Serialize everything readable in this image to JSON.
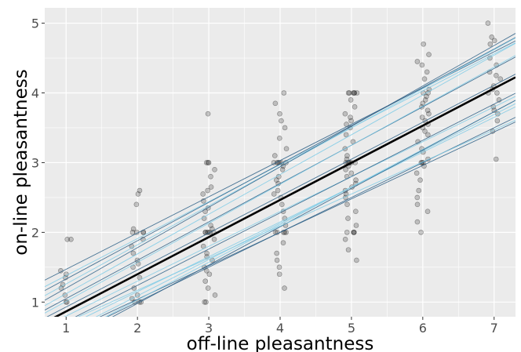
{
  "chart_data": {
    "type": "scatter",
    "xlabel": "off-line pleasantness",
    "ylabel": "on-line pleasantness",
    "xlim": [
      0.7,
      7.3
    ],
    "ylim": [
      0.79,
      5.22
    ],
    "x_ticks": [
      1,
      2,
      3,
      4,
      5,
      6,
      7
    ],
    "y_ticks": [
      1,
      2,
      3,
      4,
      5
    ],
    "grid": true,
    "legend": "none",
    "colors": {
      "panel": "#ebebeb",
      "grid_major": "#ffffff",
      "points": "#1a1a1a",
      "fixed_effect_line": "#000000",
      "random_lines_dark": "#2c5f86",
      "random_lines_light": "#7ecbe6"
    },
    "fixed_effect": {
      "intercept": 0.333,
      "slope": 0.533
    },
    "random_effects": [
      {
        "intercept": 0.95,
        "slope": 0.52
      },
      {
        "intercept": 0.85,
        "slope": 0.53
      },
      {
        "intercept": 0.78,
        "slope": 0.55
      },
      {
        "intercept": 0.7,
        "slope": 0.56
      },
      {
        "intercept": 0.62,
        "slope": 0.58
      },
      {
        "intercept": 0.55,
        "slope": 0.57
      },
      {
        "intercept": 0.5,
        "slope": 0.55
      },
      {
        "intercept": 0.45,
        "slope": 0.56
      },
      {
        "intercept": 0.4,
        "slope": 0.53
      },
      {
        "intercept": 0.3,
        "slope": 0.5
      },
      {
        "intercept": 0.2,
        "slope": 0.52
      },
      {
        "intercept": 0.15,
        "slope": 0.5
      },
      {
        "intercept": 0.08,
        "slope": 0.48
      },
      {
        "intercept": 0.05,
        "slope": 0.52
      },
      {
        "intercept": 0.0,
        "slope": 0.5
      },
      {
        "intercept": -0.05,
        "slope": 0.54
      },
      {
        "intercept": -0.12,
        "slope": 0.55
      },
      {
        "intercept": 0.25,
        "slope": 0.46
      }
    ],
    "points": [
      [
        1,
        1.0
      ],
      [
        1,
        1.0
      ],
      [
        1,
        1.2
      ],
      [
        1,
        1.25
      ],
      [
        1,
        1.35
      ],
      [
        1,
        1.4
      ],
      [
        1,
        1.45
      ],
      [
        1,
        1.9
      ],
      [
        1,
        1.9
      ],
      [
        1,
        1.1
      ],
      [
        2,
        1.0
      ],
      [
        2,
        1.0
      ],
      [
        2,
        1.0
      ],
      [
        2,
        1.05
      ],
      [
        2,
        1.1
      ],
      [
        2,
        1.2
      ],
      [
        2,
        1.35
      ],
      [
        2,
        1.5
      ],
      [
        2,
        1.55
      ],
      [
        2,
        1.6
      ],
      [
        2,
        1.7
      ],
      [
        2,
        1.8
      ],
      [
        2,
        1.9
      ],
      [
        2,
        2.0
      ],
      [
        2,
        2.0
      ],
      [
        2,
        2.0
      ],
      [
        2,
        2.0
      ],
      [
        2,
        2.05
      ],
      [
        2,
        2.4
      ],
      [
        2,
        2.55
      ],
      [
        2,
        2.6
      ],
      [
        3,
        1.0
      ],
      [
        3,
        1.0
      ],
      [
        3,
        1.1
      ],
      [
        3,
        1.2
      ],
      [
        3,
        1.3
      ],
      [
        3,
        1.4
      ],
      [
        3,
        1.45
      ],
      [
        3,
        1.5
      ],
      [
        3,
        1.6
      ],
      [
        3,
        1.65
      ],
      [
        3,
        1.7
      ],
      [
        3,
        1.8
      ],
      [
        3,
        1.9
      ],
      [
        3,
        2.0
      ],
      [
        3,
        2.0
      ],
      [
        3,
        2.0
      ],
      [
        3,
        2.0
      ],
      [
        3,
        2.0
      ],
      [
        3,
        2.0
      ],
      [
        3,
        2.05
      ],
      [
        3,
        2.1
      ],
      [
        3,
        2.2
      ],
      [
        3,
        2.3
      ],
      [
        3,
        2.35
      ],
      [
        3,
        2.45
      ],
      [
        3,
        2.55
      ],
      [
        3,
        2.6
      ],
      [
        3,
        2.65
      ],
      [
        3,
        2.8
      ],
      [
        3,
        2.9
      ],
      [
        3,
        3.0
      ],
      [
        3,
        3.0
      ],
      [
        3,
        3.0
      ],
      [
        3,
        3.7
      ],
      [
        4,
        1.2
      ],
      [
        4,
        1.4
      ],
      [
        4,
        1.5
      ],
      [
        4,
        1.6
      ],
      [
        4,
        1.7
      ],
      [
        4,
        1.85
      ],
      [
        4,
        2.0
      ],
      [
        4,
        2.0
      ],
      [
        4,
        2.0
      ],
      [
        4,
        2.0
      ],
      [
        4,
        2.0
      ],
      [
        4,
        2.1
      ],
      [
        4,
        2.2
      ],
      [
        4,
        2.3
      ],
      [
        4,
        2.4
      ],
      [
        4,
        2.5
      ],
      [
        4,
        2.55
      ],
      [
        4,
        2.6
      ],
      [
        4,
        2.7
      ],
      [
        4,
        2.75
      ],
      [
        4,
        2.8
      ],
      [
        4,
        2.9
      ],
      [
        4,
        2.95
      ],
      [
        4,
        3.0
      ],
      [
        4,
        3.0
      ],
      [
        4,
        3.0
      ],
      [
        4,
        3.0
      ],
      [
        4,
        3.0
      ],
      [
        4,
        3.0
      ],
      [
        4,
        3.1
      ],
      [
        4,
        3.2
      ],
      [
        4,
        3.35
      ],
      [
        4,
        3.5
      ],
      [
        4,
        3.6
      ],
      [
        4,
        3.7
      ],
      [
        4,
        3.85
      ],
      [
        4,
        4.0
      ],
      [
        5,
        1.6
      ],
      [
        5,
        1.75
      ],
      [
        5,
        1.9
      ],
      [
        5,
        2.0
      ],
      [
        5,
        2.0
      ],
      [
        5,
        2.0
      ],
      [
        5,
        2.0
      ],
      [
        5,
        2.1
      ],
      [
        5,
        2.2
      ],
      [
        5,
        2.3
      ],
      [
        5,
        2.4
      ],
      [
        5,
        2.5
      ],
      [
        5,
        2.55
      ],
      [
        5,
        2.6
      ],
      [
        5,
        2.65
      ],
      [
        5,
        2.7
      ],
      [
        5,
        2.75
      ],
      [
        5,
        2.8
      ],
      [
        5,
        2.85
      ],
      [
        5,
        2.9
      ],
      [
        5,
        2.95
      ],
      [
        5,
        3.0
      ],
      [
        5,
        3.0
      ],
      [
        5,
        3.0
      ],
      [
        5,
        3.0
      ],
      [
        5,
        3.0
      ],
      [
        5,
        3.0
      ],
      [
        5,
        3.05
      ],
      [
        5,
        3.1
      ],
      [
        5,
        3.2
      ],
      [
        5,
        3.3
      ],
      [
        5,
        3.4
      ],
      [
        5,
        3.5
      ],
      [
        5,
        3.55
      ],
      [
        5,
        3.6
      ],
      [
        5,
        3.65
      ],
      [
        5,
        3.7
      ],
      [
        5,
        3.8
      ],
      [
        5,
        3.9
      ],
      [
        5,
        4.0
      ],
      [
        5,
        4.0
      ],
      [
        5,
        4.0
      ],
      [
        5,
        4.0
      ],
      [
        5,
        4.0
      ],
      [
        5,
        4.0
      ],
      [
        6,
        2.0
      ],
      [
        6,
        2.15
      ],
      [
        6,
        2.3
      ],
      [
        6,
        2.4
      ],
      [
        6,
        2.5
      ],
      [
        6,
        2.6
      ],
      [
        6,
        2.75
      ],
      [
        6,
        2.85
      ],
      [
        6,
        2.95
      ],
      [
        6,
        3.0
      ],
      [
        6,
        3.0
      ],
      [
        6,
        3.0
      ],
      [
        6,
        3.05
      ],
      [
        6,
        3.15
      ],
      [
        6,
        3.2
      ],
      [
        6,
        3.3
      ],
      [
        6,
        3.4
      ],
      [
        6,
        3.45
      ],
      [
        6,
        3.5
      ],
      [
        6,
        3.55
      ],
      [
        6,
        3.6
      ],
      [
        6,
        3.65
      ],
      [
        6,
        3.7
      ],
      [
        6,
        3.75
      ],
      [
        6,
        3.8
      ],
      [
        6,
        3.85
      ],
      [
        6,
        3.9
      ],
      [
        6,
        3.95
      ],
      [
        6,
        4.0
      ],
      [
        6,
        4.0
      ],
      [
        6,
        4.05
      ],
      [
        6,
        4.2
      ],
      [
        6,
        4.3
      ],
      [
        6,
        4.4
      ],
      [
        6,
        4.45
      ],
      [
        6,
        4.55
      ],
      [
        6,
        4.7
      ],
      [
        7,
        3.05
      ],
      [
        7,
        3.45
      ],
      [
        7,
        3.6
      ],
      [
        7,
        3.7
      ],
      [
        7,
        3.75
      ],
      [
        7,
        3.8
      ],
      [
        7,
        3.9
      ],
      [
        7,
        4.0
      ],
      [
        7,
        4.0
      ],
      [
        7,
        4.05
      ],
      [
        7,
        4.1
      ],
      [
        7,
        4.2
      ],
      [
        7,
        4.25
      ],
      [
        7,
        4.3
      ],
      [
        7,
        4.4
      ],
      [
        7,
        4.5
      ],
      [
        7,
        4.7
      ],
      [
        7,
        4.75
      ],
      [
        7,
        4.8
      ],
      [
        7,
        5.0
      ]
    ]
  }
}
